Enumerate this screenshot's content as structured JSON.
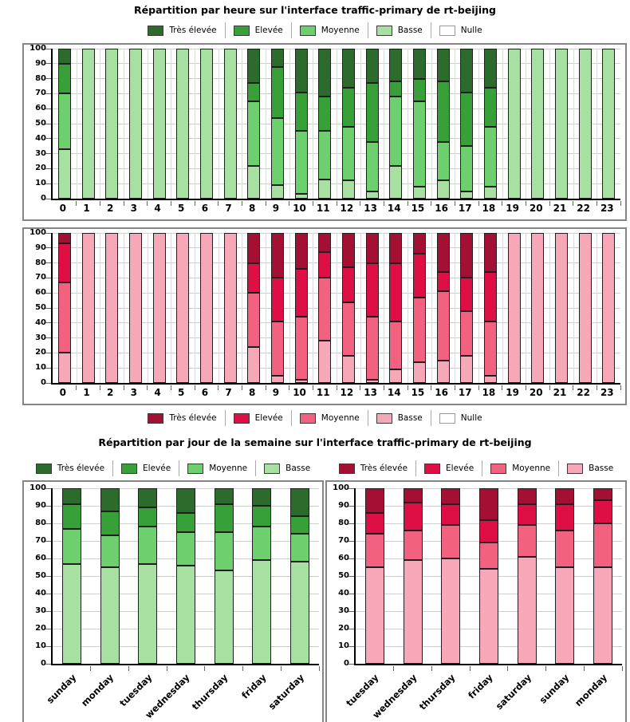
{
  "page": {
    "hourly_title": "Répartition par heure sur l'interface traffic-primary de rt-beijing",
    "daily_title": "Répartition par jour de la semaine sur l'interface traffic-primary de rt-beijing"
  },
  "palette": {
    "green": {
      "tres_elevee": "#2d6b2d",
      "elevee": "#38a038",
      "moyenne": "#6ecf6e",
      "basse": "#a7e0a0",
      "nulle": "#ffffff"
    },
    "red": {
      "tres_elevee": "#a31034",
      "elevee": "#dd0f45",
      "moyenne": "#f26180",
      "basse": "#f7a8b8",
      "nulle": "#ffffff"
    }
  },
  "chart_data": [
    {
      "id": "hourly-green",
      "type": "bar",
      "stacked": true,
      "title": "Répartition par heure sur l'interface traffic-primary de rt-beijing",
      "xlabel": "",
      "ylabel": "",
      "ylim": [
        0,
        100
      ],
      "yticks": [
        0,
        10,
        20,
        30,
        40,
        50,
        60,
        70,
        80,
        90,
        100
      ],
      "grid_vertical": true,
      "rotate_labels": false,
      "legend_position": "top",
      "legend": [
        "Très élevée",
        "Elevée",
        "Moyenne",
        "Basse",
        "Nulle"
      ],
      "categories": [
        "0",
        "1",
        "2",
        "3",
        "4",
        "5",
        "6",
        "7",
        "8",
        "9",
        "10",
        "11",
        "12",
        "13",
        "14",
        "15",
        "16",
        "17",
        "18",
        "19",
        "20",
        "21",
        "22",
        "23"
      ],
      "series": [
        {
          "name": "Basse",
          "color": "#a7e0a0",
          "values": [
            33,
            100,
            100,
            100,
            100,
            100,
            100,
            100,
            22,
            9,
            3,
            13,
            12,
            5,
            22,
            8,
            12,
            5,
            8,
            100,
            100,
            100,
            100,
            100
          ]
        },
        {
          "name": "Moyenne",
          "color": "#6ecf6e",
          "values": [
            37,
            0,
            0,
            0,
            0,
            0,
            0,
            0,
            43,
            45,
            42,
            32,
            36,
            33,
            46,
            57,
            26,
            30,
            40,
            0,
            0,
            0,
            0,
            0
          ]
        },
        {
          "name": "Elevée",
          "color": "#38a038",
          "values": [
            20,
            0,
            0,
            0,
            0,
            0,
            0,
            0,
            12,
            34,
            26,
            23,
            26,
            39,
            10,
            15,
            40,
            36,
            26,
            0,
            0,
            0,
            0,
            0
          ]
        },
        {
          "name": "Très élevée",
          "color": "#2d6b2d",
          "values": [
            10,
            0,
            0,
            0,
            0,
            0,
            0,
            0,
            23,
            12,
            29,
            32,
            26,
            23,
            22,
            20,
            22,
            29,
            26,
            0,
            0,
            0,
            0,
            0
          ]
        },
        {
          "name": "Nulle",
          "color": "#ffffff",
          "values": [
            0,
            0,
            0,
            0,
            0,
            0,
            0,
            0,
            0,
            0,
            0,
            0,
            0,
            0,
            0,
            0,
            0,
            0,
            0,
            0,
            0,
            0,
            0,
            0
          ]
        }
      ]
    },
    {
      "id": "hourly-red",
      "type": "bar",
      "stacked": true,
      "xlabel": "",
      "ylabel": "",
      "ylim": [
        0,
        100
      ],
      "yticks": [
        0,
        10,
        20,
        30,
        40,
        50,
        60,
        70,
        80,
        90,
        100
      ],
      "grid_vertical": true,
      "rotate_labels": false,
      "legend_position": "bottom",
      "legend": [
        "Très élevée",
        "Elevée",
        "Moyenne",
        "Basse",
        "Nulle"
      ],
      "categories": [
        "0",
        "1",
        "2",
        "3",
        "4",
        "5",
        "6",
        "7",
        "8",
        "9",
        "10",
        "11",
        "12",
        "13",
        "14",
        "15",
        "16",
        "17",
        "18",
        "19",
        "20",
        "21",
        "22",
        "23"
      ],
      "series": [
        {
          "name": "Basse",
          "color": "#f7a8b8",
          "values": [
            20,
            100,
            100,
            100,
            100,
            100,
            100,
            100,
            24,
            5,
            2,
            28,
            18,
            2,
            9,
            14,
            15,
            18,
            5,
            100,
            100,
            100,
            100,
            100
          ]
        },
        {
          "name": "Moyenne",
          "color": "#f26180",
          "values": [
            47,
            0,
            0,
            0,
            0,
            0,
            0,
            0,
            36,
            36,
            42,
            42,
            36,
            42,
            32,
            43,
            46,
            30,
            36,
            0,
            0,
            0,
            0,
            0
          ]
        },
        {
          "name": "Elevée",
          "color": "#dd0f45",
          "values": [
            26,
            0,
            0,
            0,
            0,
            0,
            0,
            0,
            20,
            29,
            32,
            17,
            23,
            36,
            39,
            29,
            13,
            22,
            33,
            0,
            0,
            0,
            0,
            0
          ]
        },
        {
          "name": "Très élevée",
          "color": "#a31034",
          "values": [
            7,
            0,
            0,
            0,
            0,
            0,
            0,
            0,
            20,
            30,
            24,
            13,
            23,
            20,
            20,
            14,
            26,
            30,
            26,
            0,
            0,
            0,
            0,
            0
          ]
        },
        {
          "name": "Nulle",
          "color": "#ffffff",
          "values": [
            0,
            0,
            0,
            0,
            0,
            0,
            0,
            0,
            0,
            0,
            0,
            0,
            0,
            0,
            0,
            0,
            0,
            0,
            0,
            0,
            0,
            0,
            0,
            0
          ]
        }
      ]
    },
    {
      "id": "daily-green",
      "type": "bar",
      "stacked": true,
      "title": "Répartition par jour de la semaine sur l'interface traffic-primary de rt-beijing",
      "xlabel": "",
      "ylabel": "",
      "ylim": [
        0,
        100
      ],
      "yticks": [
        0,
        10,
        20,
        30,
        40,
        50,
        60,
        70,
        80,
        90,
        100
      ],
      "grid_vertical": false,
      "rotate_labels": true,
      "legend_position": "top",
      "legend": [
        "Très élevée",
        "Elevée",
        "Moyenne",
        "Basse"
      ],
      "categories": [
        "sunday",
        "monday",
        "tuesday",
        "wednesday",
        "thursday",
        "friday",
        "saturday"
      ],
      "series": [
        {
          "name": "Basse",
          "color": "#a7e0a0",
          "values": [
            57,
            55,
            57,
            56,
            53,
            59,
            58
          ]
        },
        {
          "name": "Moyenne",
          "color": "#6ecf6e",
          "values": [
            20,
            18,
            21,
            19,
            22,
            19,
            16
          ]
        },
        {
          "name": "Elevée",
          "color": "#38a038",
          "values": [
            14,
            14,
            11,
            11,
            16,
            12,
            10
          ]
        },
        {
          "name": "Très élevée",
          "color": "#2d6b2d",
          "values": [
            9,
            13,
            11,
            14,
            9,
            10,
            16
          ]
        }
      ]
    },
    {
      "id": "daily-red",
      "type": "bar",
      "stacked": true,
      "xlabel": "",
      "ylabel": "",
      "ylim": [
        0,
        100
      ],
      "yticks": [
        0,
        10,
        20,
        30,
        40,
        50,
        60,
        70,
        80,
        90,
        100
      ],
      "grid_vertical": false,
      "rotate_labels": true,
      "legend_position": "top",
      "legend": [
        "Très élevée",
        "Elevée",
        "Moyenne",
        "Basse"
      ],
      "categories": [
        "tuesday",
        "wednesday",
        "thursday",
        "friday",
        "saturday",
        "sunday",
        "monday"
      ],
      "series": [
        {
          "name": "Basse",
          "color": "#f7a8b8",
          "values": [
            55,
            59,
            60,
            54,
            61,
            55,
            55
          ]
        },
        {
          "name": "Moyenne",
          "color": "#f26180",
          "values": [
            19,
            17,
            19,
            15,
            18,
            21,
            25
          ]
        },
        {
          "name": "Elevée",
          "color": "#dd0f45",
          "values": [
            12,
            16,
            12,
            13,
            12,
            15,
            13
          ]
        },
        {
          "name": "Très élevée",
          "color": "#a31034",
          "values": [
            14,
            8,
            9,
            18,
            9,
            9,
            7
          ]
        }
      ]
    }
  ]
}
